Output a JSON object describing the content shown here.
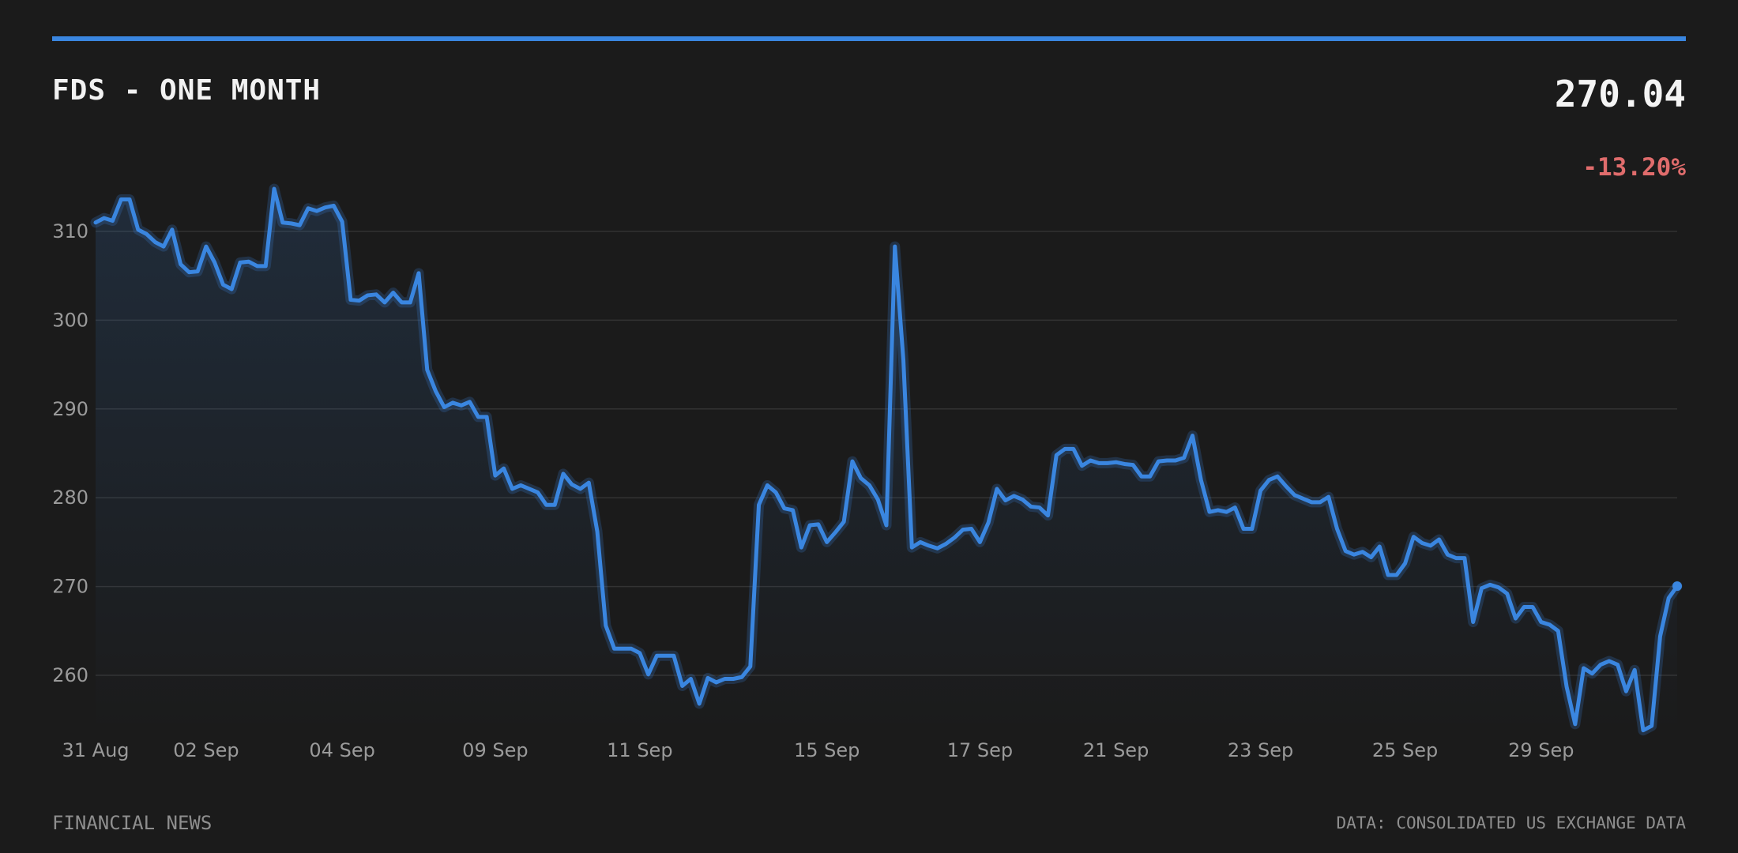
{
  "header": {
    "title": "FDS - ONE MONTH",
    "price": "270.04",
    "change": "-13.20%"
  },
  "footer": {
    "source_left": "FINANCIAL NEWS",
    "source_right": "DATA: CONSOLIDATED US EXCHANGE DATA"
  },
  "colors": {
    "background": "#1b1b1b",
    "accent": "#3a86e0",
    "line": "#3a86e0",
    "negative": "#e06c6c",
    "grid": "#333333",
    "tick_text": "#9a9a9a"
  },
  "chart_data": {
    "type": "area",
    "title": "FDS - ONE MONTH",
    "xlabel": "",
    "ylabel": "",
    "ylim": [
      254,
      315
    ],
    "yticks": [
      260,
      270,
      280,
      290,
      300,
      310
    ],
    "grid": true,
    "legend": "none",
    "x_tick_labels": [
      {
        "label": "31 Aug",
        "index": 0
      },
      {
        "label": "02 Sep",
        "index": 13
      },
      {
        "label": "04 Sep",
        "index": 29
      },
      {
        "label": "09 Sep",
        "index": 47
      },
      {
        "label": "11 Sep",
        "index": 64
      },
      {
        "label": "15 Sep",
        "index": 86
      },
      {
        "label": "17 Sep",
        "index": 104
      },
      {
        "label": "21 Sep",
        "index": 120
      },
      {
        "label": "23 Sep",
        "index": 137
      },
      {
        "label": "25 Sep",
        "index": 154
      },
      {
        "label": "29 Sep",
        "index": 170
      }
    ],
    "series": [
      {
        "values": [
          311.0,
          311.5,
          311.2,
          313.6,
          313.6,
          310.2,
          309.7,
          308.8,
          308.3,
          310.2,
          306.3,
          305.4,
          305.5,
          308.3,
          306.5,
          304.0,
          303.5,
          306.5,
          306.6,
          306.1,
          306.1,
          314.8,
          311.0,
          310.9,
          310.7,
          312.6,
          312.3,
          312.7,
          312.9,
          311.1,
          302.3,
          302.2,
          302.8,
          302.9,
          302.0,
          303.1,
          302.0,
          302.0,
          305.3,
          294.4,
          292.0,
          290.2,
          290.7,
          290.4,
          290.8,
          289.1,
          289.1,
          282.5,
          283.3,
          281.0,
          281.4,
          281.0,
          280.6,
          279.2,
          279.2,
          282.7,
          281.5,
          281.0,
          281.7,
          276.2,
          265.6,
          263.0,
          263.0,
          263.0,
          262.5,
          260.1,
          262.2,
          262.2,
          262.2,
          258.8,
          259.6,
          256.8,
          259.7,
          259.2,
          259.6,
          259.6,
          259.8,
          261.0,
          279.2,
          281.4,
          280.6,
          278.8,
          278.6,
          274.4,
          276.9,
          277.0,
          275.0,
          276.1,
          277.3,
          284.1,
          282.2,
          281.4,
          279.8,
          276.9,
          308.3,
          295.5,
          274.4,
          275.0,
          274.6,
          274.3,
          274.8,
          275.5,
          276.4,
          276.5,
          275.0,
          277.2,
          281.0,
          279.7,
          280.2,
          279.8,
          279.0,
          278.9,
          278.0,
          284.8,
          285.5,
          285.5,
          283.6,
          284.2,
          283.9,
          283.9,
          284.0,
          283.8,
          283.7,
          282.4,
          282.4,
          284.1,
          284.2,
          284.2,
          284.5,
          287.0,
          282.0,
          278.4,
          278.6,
          278.4,
          278.9,
          276.5,
          276.5,
          280.8,
          282.0,
          282.4,
          281.3,
          280.3,
          279.9,
          279.5,
          279.5,
          280.1,
          276.5,
          274.0,
          273.6,
          273.9,
          273.3,
          274.5,
          271.3,
          271.3,
          272.6,
          275.6,
          274.9,
          274.6,
          275.3,
          273.6,
          273.2,
          273.2,
          266.0,
          269.8,
          270.2,
          269.9,
          269.2,
          266.4,
          267.7,
          267.7,
          266.0,
          265.7,
          265.0,
          258.7,
          254.5,
          260.8,
          260.2,
          261.2,
          261.6,
          261.2,
          258.2,
          260.6,
          253.8,
          254.3,
          264.4,
          268.7,
          270.04
        ]
      }
    ]
  }
}
